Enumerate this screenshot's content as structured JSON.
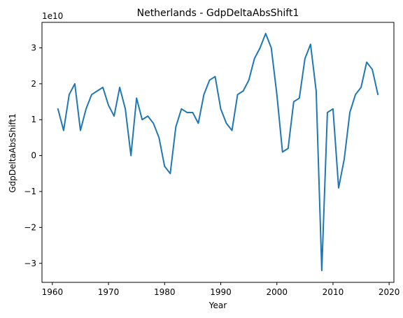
{
  "chart_data": {
    "type": "line",
    "title": "Netherlands - GdpDeltaAbsShift1",
    "xlabel": "Year",
    "ylabel": "GdpDeltaAbsShift1",
    "y_offset_label": "1e10",
    "xlim": [
      1958.15,
      2020.85
    ],
    "ylim": [
      -35300000000.0,
      37100000000.0
    ],
    "x_ticks": [
      1960,
      1970,
      1980,
      1990,
      2000,
      2010,
      2020
    ],
    "x_tick_labels": [
      "1960",
      "1970",
      "1980",
      "1990",
      "2000",
      "2010",
      "2020"
    ],
    "y_ticks": [
      -30000000000.0,
      -20000000000.0,
      -10000000000.0,
      0,
      10000000000.0,
      20000000000.0,
      30000000000.0
    ],
    "y_tick_labels": [
      "−3",
      "−2",
      "−1",
      "0",
      "1",
      "2",
      "3"
    ],
    "grid": false,
    "line_color": "#1f77b4",
    "series": [
      {
        "x": [
          1961,
          1962,
          1963,
          1964,
          1965,
          1966,
          1967,
          1968,
          1969,
          1970,
          1971,
          1972,
          1973,
          1974,
          1975,
          1976,
          1977,
          1978,
          1979,
          1980,
          1981,
          1982,
          1983,
          1984,
          1985,
          1986,
          1987,
          1988,
          1989,
          1990,
          1991,
          1992,
          1993,
          1994,
          1995,
          1996,
          1997,
          1998,
          1999,
          2000,
          2001,
          2002,
          2003,
          2004,
          2005,
          2006,
          2007,
          2008,
          2009,
          2010,
          2011,
          2012,
          2013,
          2014,
          2015,
          2016,
          2017,
          2018
        ],
        "values": [
          13000000000.0,
          7000000000.0,
          17000000000.0,
          20000000000.0,
          7000000000.0,
          13000000000.0,
          17000000000.0,
          18000000000.0,
          19000000000.0,
          14000000000.0,
          11000000000.0,
          19000000000.0,
          13000000000.0,
          0.0,
          16000000000.0,
          10000000000.0,
          11000000000.0,
          9000000000.0,
          5000000000.0,
          -3000000000.0,
          -5000000000.0,
          8000000000.0,
          13000000000.0,
          12000000000.0,
          12000000000.0,
          9000000000.0,
          17000000000.0,
          21000000000.0,
          22000000000.0,
          13000000000.0,
          9000000000.0,
          7000000000.0,
          17000000000.0,
          18000000000.0,
          21000000000.0,
          27000000000.0,
          30000000000.0,
          34000000000.0,
          30000000000.0,
          17000000000.0,
          1000000000.0,
          2000000000.0,
          15000000000.0,
          16000000000.0,
          27000000000.0,
          31000000000.0,
          18000000000.0,
          -32000000000.0,
          12000000000.0,
          13000000000.0,
          -9000000000.0,
          -1000000000.0,
          12000000000.0,
          17000000000.0,
          19000000000.0,
          26000000000.0,
          24000000000.0,
          17000000000.0
        ]
      }
    ]
  }
}
